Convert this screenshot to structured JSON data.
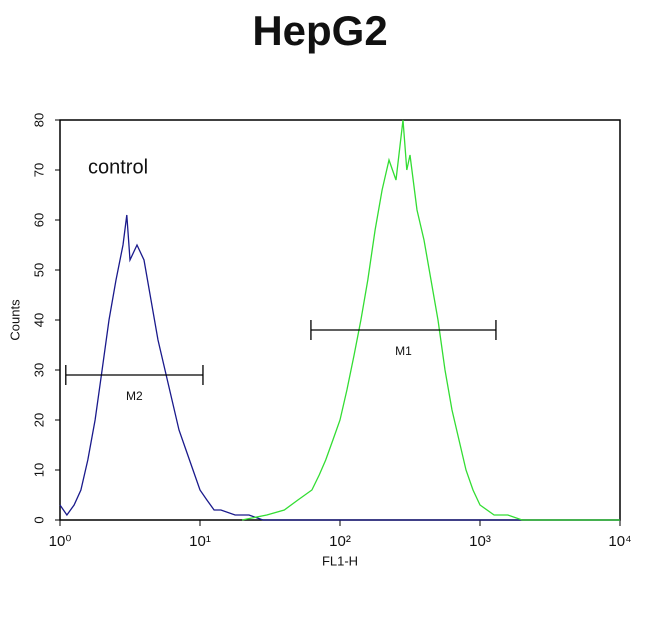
{
  "chart_data": {
    "type": "line",
    "title": "HepG2",
    "x_label": "FL1-H",
    "y_label": "Counts",
    "annotation": "control",
    "log_x": true,
    "xlim": [
      1,
      10000
    ],
    "ylim": [
      0,
      80
    ],
    "xticks": [
      {
        "value": 1,
        "label": "10⁰"
      },
      {
        "value": 10,
        "label": "10¹"
      },
      {
        "value": 100,
        "label": "10²"
      },
      {
        "value": 1000,
        "label": "10³"
      },
      {
        "value": 10000,
        "label": "10⁴"
      }
    ],
    "yticks": [
      0,
      10,
      20,
      30,
      40,
      50,
      60,
      70,
      80
    ],
    "series": [
      {
        "color": "#1a1a8c",
        "x": [
          1.0,
          1.12,
          1.26,
          1.41,
          1.58,
          1.78,
          2.0,
          2.24,
          2.51,
          2.82,
          3.0,
          3.16,
          3.55,
          3.98,
          4.47,
          5.01,
          5.62,
          6.31,
          7.08,
          7.94,
          8.91,
          10.0,
          11.2,
          12.6,
          14.1,
          17.8,
          22.4,
          28.2,
          40,
          100,
          300,
          1000,
          10000
        ],
        "values": [
          3,
          1,
          3,
          6,
          12,
          20,
          30,
          40,
          48,
          55,
          61,
          52,
          55,
          52,
          44,
          36,
          30,
          24,
          18,
          14,
          10,
          6,
          4,
          2,
          2,
          1,
          1,
          0,
          0,
          0,
          0,
          0,
          0
        ]
      },
      {
        "color": "#33dd33",
        "x": [
          20,
          30,
          40,
          50,
          63,
          71,
          79,
          89,
          100,
          112,
          126,
          141,
          158,
          178,
          200,
          224,
          251,
          282,
          300,
          316,
          355,
          398,
          447,
          501,
          562,
          631,
          708,
          794,
          891,
          1000,
          1260,
          1580,
          2000,
          10000
        ],
        "values": [
          0,
          1,
          2,
          4,
          6,
          9,
          12,
          16,
          20,
          26,
          33,
          40,
          48,
          58,
          66,
          72,
          68,
          80,
          70,
          73,
          62,
          56,
          48,
          40,
          30,
          22,
          16,
          10,
          6,
          3,
          1,
          1,
          0,
          0
        ]
      }
    ],
    "markers": [
      {
        "label": "M2",
        "x": [
          1.1,
          10.5
        ],
        "y": 29
      },
      {
        "label": "M1",
        "x": [
          62,
          1300
        ],
        "y": 38
      }
    ]
  }
}
